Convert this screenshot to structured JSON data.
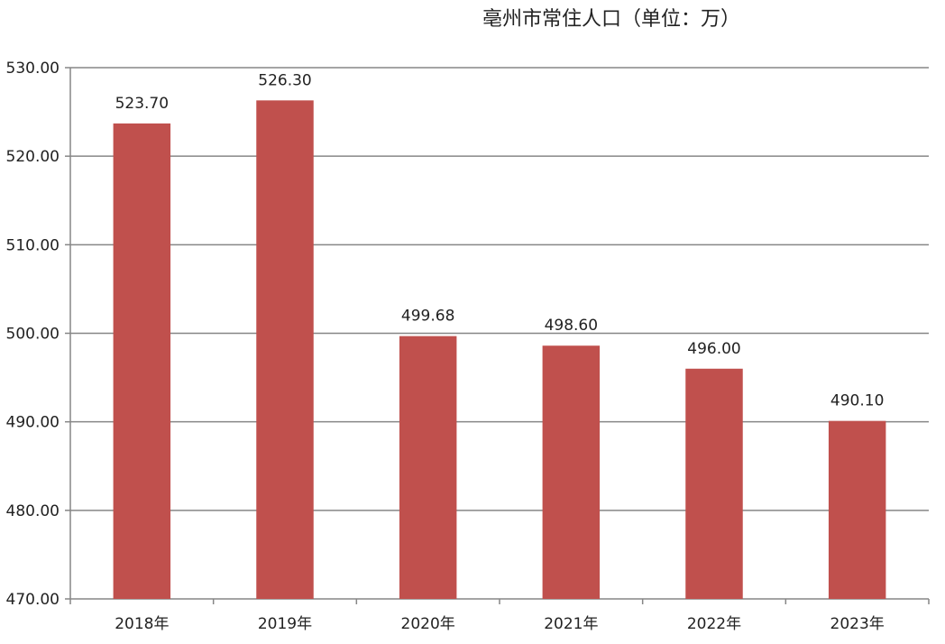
{
  "chart_data": {
    "type": "bar",
    "title": "亳州市常住人口（单位：万）",
    "categories": [
      "2018年",
      "2019年",
      "2020年",
      "2021年",
      "2022年",
      "2023年"
    ],
    "values": [
      523.7,
      526.3,
      499.68,
      498.6,
      496.0,
      490.1
    ],
    "data_labels": [
      "523.70",
      "526.30",
      "499.68",
      "498.60",
      "496.00",
      "490.10"
    ],
    "y_ticks": [
      "470.00",
      "480.00",
      "490.00",
      "500.00",
      "510.00",
      "520.00",
      "530.00"
    ],
    "ylim": [
      470,
      530
    ],
    "xlabel": "",
    "ylabel": "",
    "grid": true,
    "legend": "none",
    "bar_color": "#c0504d",
    "grid_color": "#868686"
  }
}
